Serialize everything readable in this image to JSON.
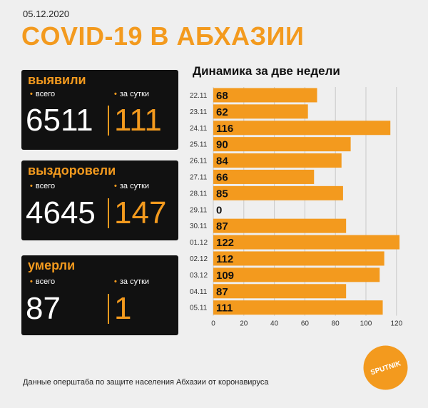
{
  "date": "05.12.2020",
  "title": "COVID-19 В АБХАЗИИ",
  "cards": [
    {
      "heading": "выявили",
      "total_label": "всего",
      "day_label": "за сутки",
      "total": "6511",
      "day": "111"
    },
    {
      "heading": "выздоровели",
      "total_label": "всего",
      "day_label": "за сутки",
      "total": "4645",
      "day": "147"
    },
    {
      "heading": "умерли",
      "total_label": "всего",
      "day_label": "за сутки",
      "total": "87",
      "day": "1"
    }
  ],
  "chart_title": "Динамика за две недели",
  "footer": "Данные оперштаба по защите населения Абхазии от коронавируса",
  "logo_text": "SPUTNIK",
  "colors": {
    "accent": "#f39a1e",
    "card_bg": "#111111",
    "background": "#efefef"
  },
  "chart_data": {
    "type": "bar",
    "orientation": "horizontal",
    "categories": [
      "22.11",
      "23.11",
      "24.11",
      "25.11",
      "26.11",
      "27.11",
      "28.11",
      "29.11",
      "30.11",
      "01.12",
      "02.12",
      "03.12",
      "04.11",
      "05.11"
    ],
    "values": [
      68,
      62,
      116,
      90,
      84,
      66,
      85,
      0,
      87,
      122,
      112,
      109,
      87,
      111
    ],
    "xlim": [
      0,
      125
    ],
    "xticks": [
      0,
      20,
      40,
      60,
      80,
      100,
      120
    ],
    "grid": true,
    "title": "Динамика за две недели"
  }
}
